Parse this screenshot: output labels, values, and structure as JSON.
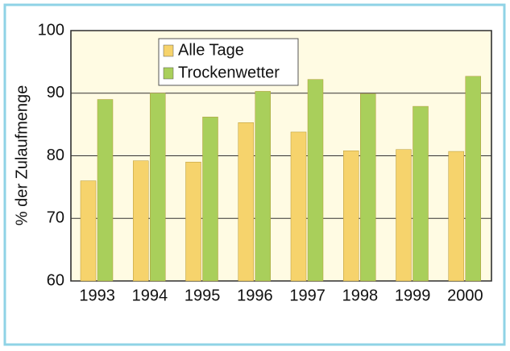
{
  "chart_data": {
    "type": "bar",
    "ylabel": "% der Zulaufmenge",
    "categories": [
      "1993",
      "1994",
      "1995",
      "1996",
      "1997",
      "1998",
      "1999",
      "2000"
    ],
    "series": [
      {
        "name": "Alle Tage",
        "color": "#f6d36c",
        "values": [
          76,
          79.2,
          79,
          85.3,
          83.8,
          80.8,
          81,
          80.7
        ]
      },
      {
        "name": "Trockenwetter",
        "color": "#a9cf5b",
        "values": [
          89,
          90,
          86.2,
          90.3,
          92.2,
          89.9,
          87.9,
          92.7
        ]
      }
    ],
    "ylim": [
      60,
      100
    ],
    "yticks": [
      60,
      70,
      80,
      90,
      100
    ],
    "grid": true,
    "legend": "upper left"
  }
}
